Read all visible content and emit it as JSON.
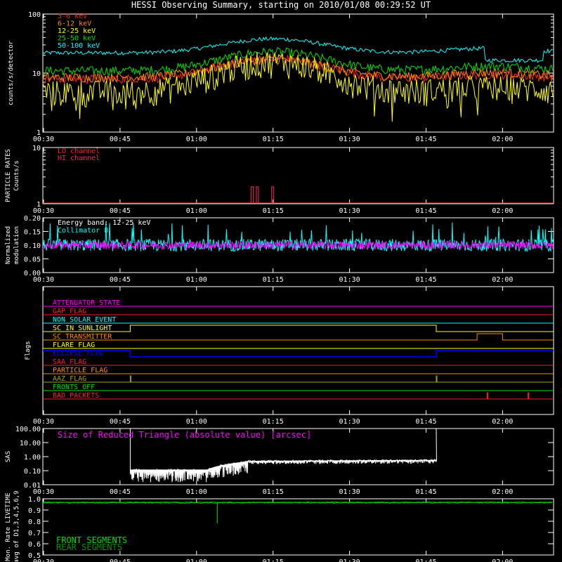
{
  "title": "HESSI Observing Summary, starting on 2010/01/08 00:29:52 UT",
  "time_ticks": [
    "00:30",
    "00:45",
    "01:00",
    "01:15",
    "01:30",
    "01:45",
    "02:00"
  ],
  "colors": {
    "background": "#000000",
    "axis": "#ffffff",
    "red": "#ff2020",
    "orange": "#ff8c00",
    "yellow": "#ffff00",
    "green": "#00e000",
    "cyan": "#00ffff",
    "magenta": "#ff00ff",
    "blue": "#0000ff",
    "white": "#ffffff",
    "olive": "#a0a020",
    "crimson": "#ff2060"
  },
  "chart_data": [
    {
      "id": "count-rates",
      "type": "line",
      "ylabel": "counts/s/detector",
      "yscale": "log",
      "ylim": [
        1,
        100
      ],
      "ytick_labels": [
        "1",
        "10",
        "100"
      ],
      "xlim": [
        "00:30",
        "02:10"
      ],
      "series": [
        {
          "name": "3-6 keV",
          "color": "#ff2020",
          "base": 8,
          "peak": 18
        },
        {
          "name": "6-12 keV",
          "color": "#ff8c00",
          "base": 8.5,
          "peak": 17
        },
        {
          "name": "12-25 keV",
          "color": "#ffff00",
          "base": 5,
          "peak": 16
        },
        {
          "name": "25-50 keV",
          "color": "#00e000",
          "base": 11,
          "peak": 23
        },
        {
          "name": "50-100 keV",
          "color": "#00ffff",
          "base": 22,
          "peak": 38
        }
      ]
    },
    {
      "id": "particle-rates",
      "type": "line",
      "ylabel": "PARTICLE RATES",
      "ylabel2": "Counts/s",
      "yscale": "log",
      "ylim": [
        1,
        10
      ],
      "ytick_labels": [
        "1",
        "10"
      ],
      "series": [
        {
          "name": "LO channel",
          "color": "#ff2020"
        },
        {
          "name": "HI channel",
          "color": "#ff2060",
          "spikes": [
            "01:11",
            "01:12",
            "01:15"
          ],
          "spike_value": 2
        }
      ]
    },
    {
      "id": "modulation",
      "type": "line",
      "ylabel": "Normalized",
      "ylabel2": "modulation",
      "ylim": [
        0.0,
        0.2
      ],
      "ytick_labels": [
        "0.00",
        "0.05",
        "0.10",
        "0.15",
        "0.20"
      ],
      "annotation": "Energy band: 12-25 keV",
      "series": [
        {
          "name": "Collimator 8",
          "color": "#00ffff",
          "mean": 0.1
        },
        {
          "name": "",
          "color": "#ff00ff",
          "mean": 0.1
        }
      ]
    },
    {
      "id": "flags",
      "type": "line",
      "ylabel": "Flags",
      "flags": [
        {
          "name": "ATTENUATOR STATE",
          "color": "#ff00ff",
          "on": []
        },
        {
          "name": "GAP FLAG",
          "color": "#ff2020",
          "on": []
        },
        {
          "name": "NON SOLAR EVENT",
          "color": "#00ffff",
          "on": []
        },
        {
          "name": "SC IN SUNLIGHT",
          "color": "#ffff00",
          "on": [
            [
              "00:47",
              "01:47"
            ]
          ]
        },
        {
          "name": "SC TRANSMITTER",
          "color": "#ff8c00",
          "on": [
            [
              "01:55",
              "02:00"
            ]
          ]
        },
        {
          "name": "FLARE FLAG",
          "color": "#ffff00",
          "on": []
        },
        {
          "name": "ECLIPSE FLAG",
          "color": "#0000ff",
          "on": [
            [
              "00:30",
              "00:47"
            ],
            [
              "01:47",
              "02:10"
            ]
          ]
        },
        {
          "name": "SAA FLAG",
          "color": "#ff2020",
          "on": []
        },
        {
          "name": "PARTICLE FLAG",
          "color": "#ff8c00",
          "on": []
        },
        {
          "name": "AAZ FLAG",
          "color": "#a0a020",
          "on": [
            [
              "00:47",
              "00:47"
            ],
            [
              "01:47",
              "01:47"
            ]
          ]
        },
        {
          "name": "FRONTS OFF",
          "color": "#00e000",
          "on": []
        },
        {
          "name": "BAD PACKETS",
          "color": "#ff2020",
          "on": [
            [
              "01:57",
              "01:57"
            ],
            [
              "02:05",
              "02:05"
            ]
          ]
        }
      ]
    },
    {
      "id": "sas",
      "type": "line",
      "ylabel": "SAS",
      "yscale": "log",
      "ylim": [
        0.01,
        100
      ],
      "ytick_labels": [
        "0.01",
        "0.10",
        "1.00",
        "10.00",
        "100.00"
      ],
      "annotation": "Size of Reduced Triangle (absolute value) [arcsec]",
      "valid_range": [
        "00:47",
        "01:47"
      ],
      "series": [
        {
          "name": "",
          "color": "#ffffff",
          "level_start": 0.15,
          "level_end": 0.55
        }
      ]
    },
    {
      "id": "livetime",
      "type": "line",
      "ylabel": "Mon. Rate LIVETIME",
      "ylabel2": "avg of D1,3,4,5,6,9",
      "ylim": [
        0.5,
        1.0
      ],
      "ytick_labels": [
        "0.5",
        "0.6",
        "0.7",
        "0.8",
        "0.9",
        "1.0"
      ],
      "series": [
        {
          "name": "FRONT SEGMENTS",
          "color": "#00e000",
          "level": 0.965,
          "dip_time": "01:04",
          "dip_value": 0.78
        },
        {
          "name": "REAR SEGMENTS",
          "color": "#009000",
          "level": 0.97
        }
      ]
    }
  ]
}
